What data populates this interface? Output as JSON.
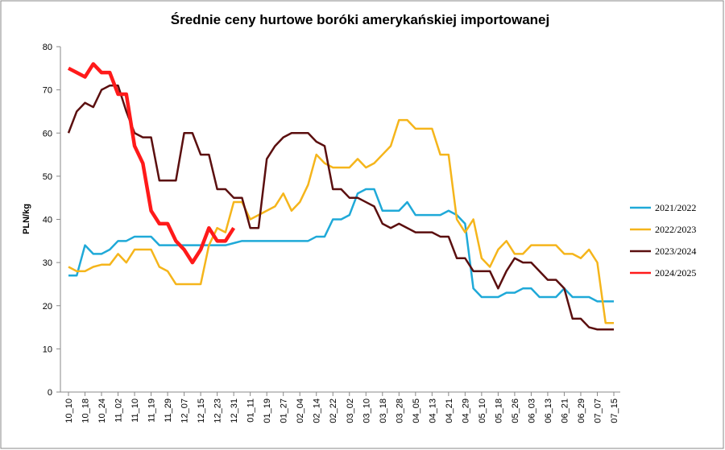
{
  "chart_data": {
    "type": "line",
    "title": "Średnie ceny hurtowe boróki amerykańskiej importowanej",
    "y_label": "PLN/kg",
    "categories": [
      "10_10",
      null,
      "10_18",
      null,
      "10_24",
      null,
      "11_02",
      null,
      "11_10",
      null,
      "11_19",
      null,
      "11_29",
      null,
      "12_07",
      null,
      "12_15",
      null,
      "12_23",
      null,
      "12_31",
      null,
      "01_11",
      null,
      "01_19",
      null,
      "01_27",
      null,
      "02_04",
      null,
      "02_14",
      null,
      "02_22",
      null,
      "03_02",
      null,
      "03_10",
      null,
      "03_18",
      null,
      "03_28",
      null,
      "04_05",
      null,
      "04_13",
      null,
      "04_21",
      null,
      "04_29",
      null,
      "05_10",
      null,
      "05_18",
      null,
      "05_26",
      null,
      "06_03",
      null,
      "06_13",
      null,
      "06_21",
      null,
      "06_29",
      null,
      "07_07",
      null,
      "07_15"
    ],
    "series": [
      {
        "name": "2021/2022",
        "color": "#1fa9d8",
        "width": 2.5,
        "values": [
          27,
          27,
          34,
          32,
          32,
          33,
          35,
          35,
          36,
          36,
          36,
          34,
          34,
          34,
          34,
          34,
          34,
          34,
          34,
          34,
          34.5,
          35,
          35,
          35,
          35,
          35,
          35,
          35,
          35,
          35,
          36,
          36,
          40,
          40,
          41,
          46,
          47,
          47,
          42,
          42,
          42,
          44,
          41,
          41,
          41,
          41,
          42,
          41,
          39,
          24,
          22,
          22,
          22,
          23,
          23,
          24,
          24,
          22,
          22,
          22,
          24,
          22,
          22,
          22,
          21,
          21,
          21
        ]
      },
      {
        "name": "2022/2023",
        "color": "#f5b51b",
        "width": 2.5,
        "values": [
          29,
          28,
          28,
          29,
          29.5,
          29.5,
          32,
          30,
          33,
          33,
          33,
          29,
          28,
          25,
          25,
          25,
          25,
          34,
          38,
          37,
          44,
          44,
          40,
          41,
          42,
          43,
          46,
          42,
          44,
          48,
          55,
          53,
          52,
          52,
          52,
          54,
          52,
          53,
          55,
          57,
          63,
          63,
          61,
          61,
          61,
          55,
          55,
          40,
          37,
          40,
          31,
          29,
          33,
          35,
          32,
          32,
          34,
          34,
          34,
          34,
          32,
          32,
          31,
          33,
          30,
          16,
          16
        ]
      },
      {
        "name": "2023/2024",
        "color": "#5b0f0f",
        "width": 2.5,
        "values": [
          60,
          65,
          67,
          66,
          70,
          71,
          71,
          65,
          60,
          59,
          59,
          49,
          49,
          49,
          60,
          60,
          55,
          55,
          47,
          47,
          45,
          45,
          38,
          38,
          54,
          57,
          59,
          60,
          60,
          60,
          58,
          57,
          47,
          47,
          45,
          45,
          44,
          43,
          39,
          38,
          39,
          38,
          37,
          37,
          37,
          36,
          36,
          31,
          31,
          28,
          28,
          28,
          24,
          28,
          31,
          30,
          30,
          28,
          26,
          26,
          24,
          17,
          17,
          15,
          14.5,
          14.5,
          14.5
        ]
      },
      {
        "name": "2024/2025",
        "color": "#ff1a1a",
        "width": 4.5,
        "values": [
          75,
          74,
          73,
          76,
          74,
          74,
          69,
          69,
          57,
          53,
          42,
          39,
          39,
          35,
          33,
          30,
          33,
          38,
          35,
          35,
          38,
          null,
          null,
          null,
          null,
          null,
          null,
          null,
          null,
          null,
          null,
          null,
          null,
          null,
          null,
          null,
          null,
          null,
          null,
          null,
          null,
          null,
          null,
          null,
          null,
          null,
          null,
          null,
          null,
          null,
          null,
          null,
          null,
          null,
          null,
          null,
          null,
          null,
          null,
          null,
          null,
          null,
          null,
          null,
          null,
          null,
          null
        ]
      }
    ],
    "ylim": [
      0,
      80
    ],
    "yticks": [
      0,
      10,
      20,
      30,
      40,
      50,
      60,
      70,
      80
    ],
    "grid": false,
    "legend": "right"
  }
}
